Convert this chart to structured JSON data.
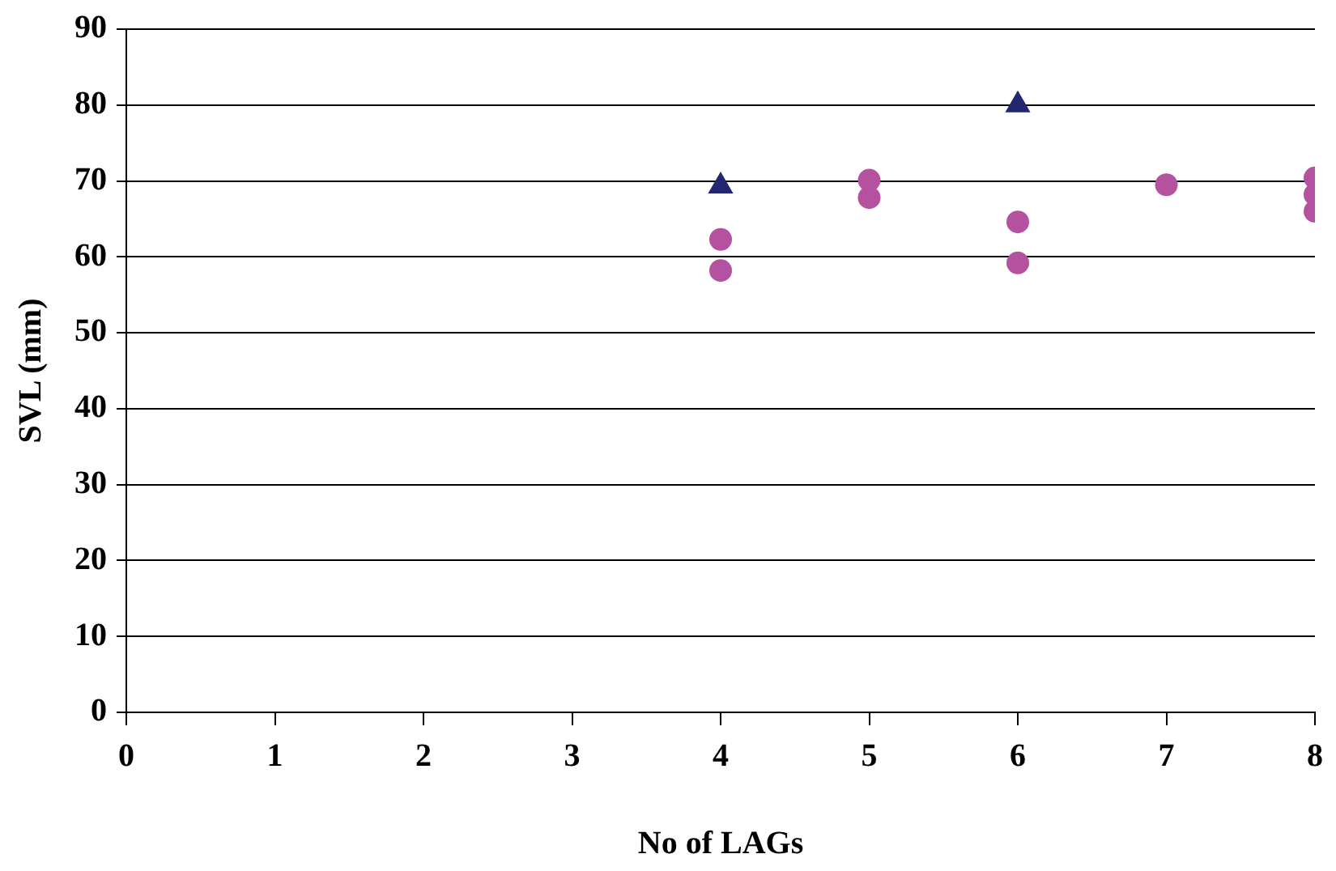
{
  "chart_data": {
    "type": "scatter",
    "xlabel": "No of LAGs",
    "ylabel": "SVL (mm)",
    "xlim": [
      0,
      8
    ],
    "xticks": [
      0,
      1,
      2,
      3,
      4,
      5,
      6,
      7,
      8
    ],
    "ylim": [
      0,
      90
    ],
    "yticks": [
      0,
      10,
      20,
      30,
      40,
      50,
      60,
      70,
      80,
      90
    ],
    "grid": "y",
    "legend": false,
    "series": [
      {
        "color": "#b5529f",
        "marker": "circle",
        "x": [
          4,
          4,
          5,
          5,
          6,
          6,
          7,
          8,
          8,
          8
        ],
        "values": [
          62.3,
          58.2,
          70.1,
          67.8,
          64.6,
          59.2,
          69.5,
          70.4,
          68.2,
          66.0
        ]
      },
      {
        "color": "#232770",
        "marker": "triangle",
        "x": [
          4,
          6
        ],
        "values": [
          69.3,
          80
        ]
      }
    ]
  }
}
